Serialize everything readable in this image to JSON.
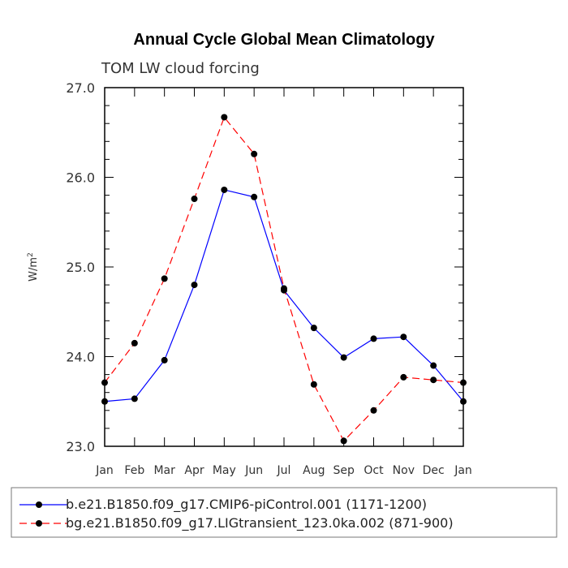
{
  "chart_data": {
    "type": "line",
    "title": "Annual Cycle Global Mean Climatology",
    "subtitle": "TOM LW cloud forcing",
    "ylabel_base": "W/m",
    "ylabel_exp": "2",
    "xlabel": "",
    "ylim": [
      23.0,
      27.0
    ],
    "yticks": [
      "23.0",
      "24.0",
      "25.0",
      "26.0",
      "27.0"
    ],
    "categories": [
      "Jan",
      "Feb",
      "Mar",
      "Apr",
      "May",
      "Jun",
      "Jul",
      "Aug",
      "Sep",
      "Oct",
      "Nov",
      "Dec",
      "Jan"
    ],
    "series": [
      {
        "name": "b.e21.B1850.f09_g17.CMIP6-piControl.001 (1171-1200)",
        "color": "#0000ff",
        "dash": "solid",
        "values": [
          23.5,
          23.53,
          23.96,
          24.8,
          25.86,
          25.78,
          24.74,
          24.32,
          23.99,
          24.2,
          24.22,
          23.9,
          23.5
        ]
      },
      {
        "name": "bg.e21.B1850.f09_g17.LIGtransient_123.0ka.002 (871-900)",
        "color": "#ff0000",
        "dash": "dashed",
        "values": [
          23.71,
          24.15,
          24.87,
          25.76,
          26.67,
          26.26,
          24.76,
          23.69,
          23.06,
          23.4,
          23.77,
          23.74,
          23.71
        ]
      }
    ],
    "legend_position": "bottom"
  }
}
